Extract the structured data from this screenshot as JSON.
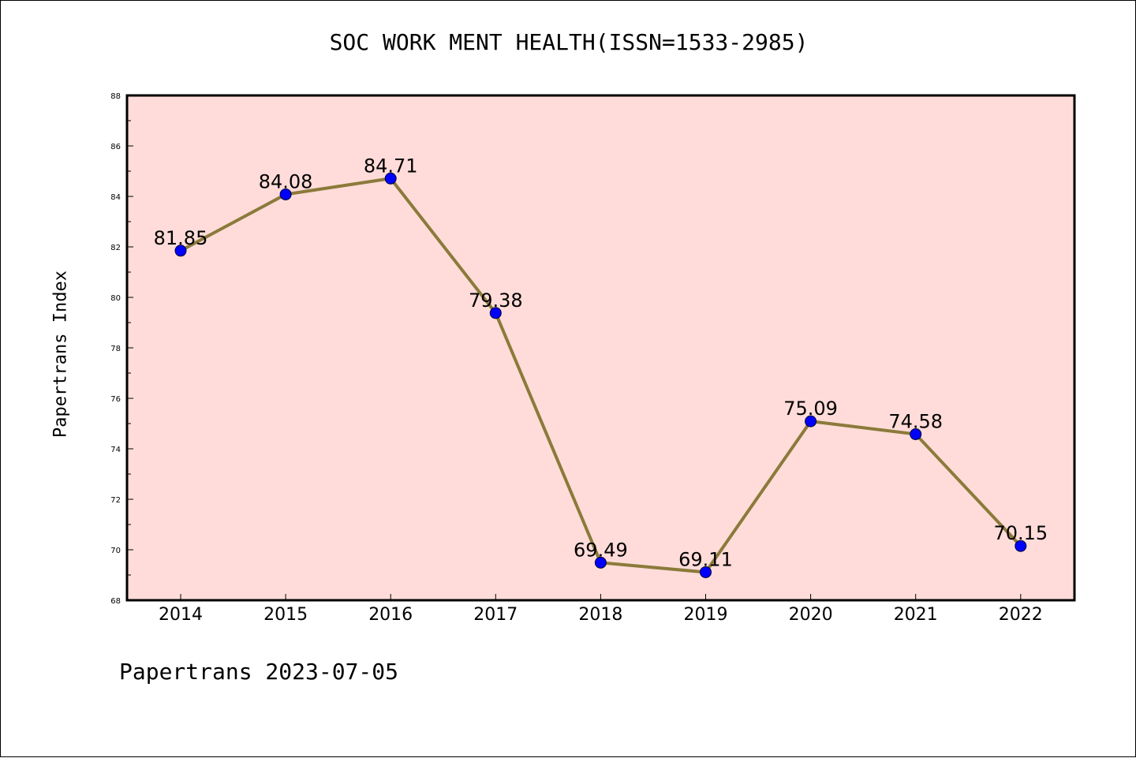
{
  "chart_data": {
    "type": "line",
    "title": "SOC WORK MENT HEALTH(ISSN=1533-2985)",
    "ylabel": "Papertrans Index",
    "xlabel": "",
    "categories": [
      "2014",
      "2015",
      "2016",
      "2017",
      "2018",
      "2019",
      "2020",
      "2021",
      "2022"
    ],
    "series": [
      {
        "values": [
          81.85,
          84.08,
          84.71,
          79.38,
          69.49,
          69.11,
          75.09,
          74.58,
          70.15
        ],
        "color": "#8b7a3a",
        "marker_color": "#0000ff"
      }
    ],
    "data_labels": [
      "81.85",
      "84.08",
      "84.71",
      "79.38",
      "69.49",
      "69.11",
      "75.09",
      "74.58",
      "70.15"
    ],
    "ylim": [
      68,
      88
    ],
    "y_ticks": [
      "68",
      "70",
      "72",
      "74",
      "76",
      "78",
      "80",
      "82",
      "84",
      "86",
      "88"
    ],
    "plot_background": "#ffdcd9",
    "grid": false,
    "legend": "none"
  },
  "footer": {
    "note": "Papertrans 2023-07-05"
  }
}
